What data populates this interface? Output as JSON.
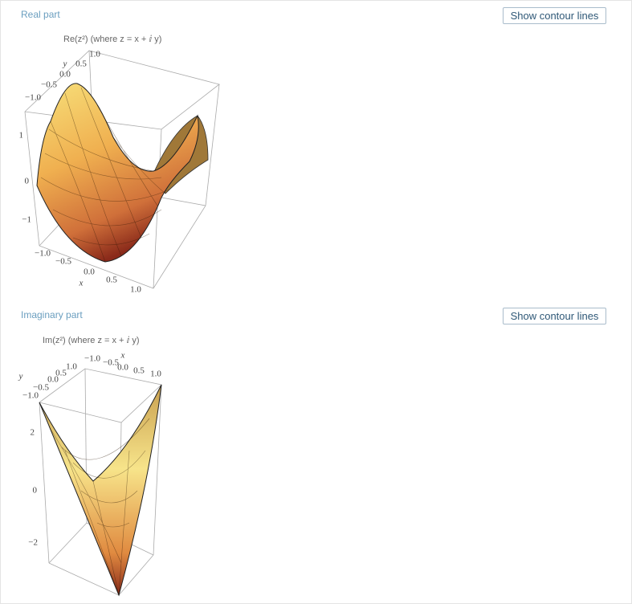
{
  "sections": [
    {
      "title": "Real part",
      "button": "Show contour lines",
      "plot": {
        "caption": "Re(z²) (where z = x + ⅈ y)",
        "x_label": "x",
        "x_ticks": [
          "−1.0",
          "−0.5",
          "0.0",
          "0.5",
          "1.0"
        ],
        "y_label": "y",
        "y_ticks": [
          "1.0",
          "0.5",
          "0.0",
          "−0.5",
          "−1.0"
        ],
        "z_ticks": [
          "1",
          "0",
          "−1"
        ]
      }
    },
    {
      "title": "Imaginary part",
      "button": "Show contour lines",
      "plot": {
        "caption": "Im(z²) (where z = x + ⅈ y)",
        "x_label": "x",
        "x_ticks": [
          "−1.0",
          "−0.5",
          "0.0",
          "0.5",
          "1.0"
        ],
        "y_label": "y",
        "y_ticks": [
          "1.0",
          "0.5",
          "0.0",
          "−0.5",
          "−1.0"
        ],
        "z_ticks": [
          "2",
          "0",
          "−2"
        ]
      }
    }
  ]
}
